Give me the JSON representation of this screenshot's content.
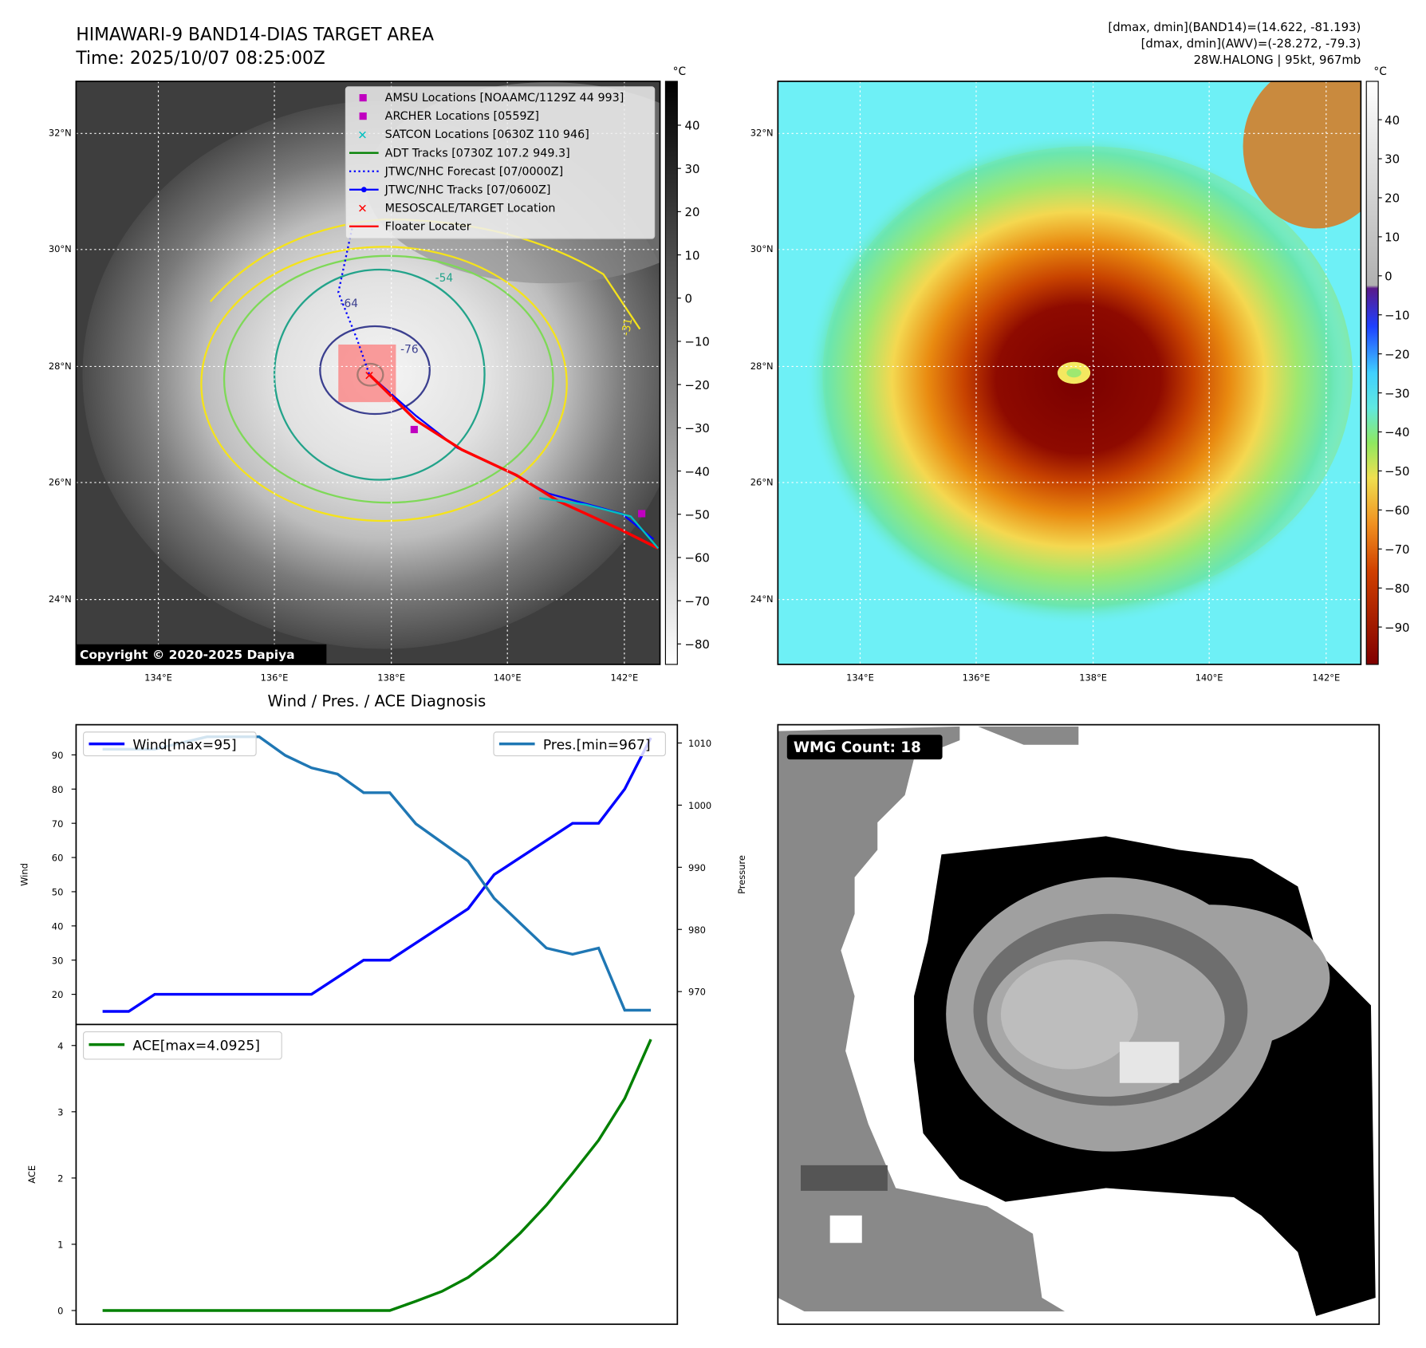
{
  "header": {
    "title": "HIMAWARI-9 BAND14-DIAS TARGET AREA",
    "time": "Time: 2025/10/07 08:25:00Z",
    "info_band14": "[dmax, dmin](BAND14)=(14.622, -81.193)",
    "info_awv": "[dmax, dmin](AWV)=(-28.272, -79.3)",
    "storm": "28W.HALONG | 95kt, 967mb"
  },
  "map": {
    "lat_labels": [
      "32°N",
      "30°N",
      "28°N",
      "26°N",
      "24°N"
    ],
    "lon_labels": [
      "134°E",
      "136°E",
      "138°E",
      "140°E",
      "142°E"
    ],
    "contour_labels": [
      "-64",
      "-76",
      "-54",
      "-31"
    ],
    "copyright": "Copyright © 2020-2025 Dapiya",
    "legend": [
      {
        "label": "AMSU Locations [NOAAMC/1129Z 44 993]",
        "marker": "square",
        "color": "#c000c0"
      },
      {
        "label": "ARCHER Locations [0559Z]",
        "marker": "square",
        "color": "#c000c0"
      },
      {
        "label": "SATCON Locations [0630Z 110 946]",
        "marker": "x",
        "color": "#00c0c0"
      },
      {
        "label": "ADT Tracks [0730Z 107.2 949.3]",
        "marker": "line",
        "color": "#008000"
      },
      {
        "label": "JTWC/NHC Forecast [07/0000Z]",
        "marker": "dotted",
        "color": "#0000ff"
      },
      {
        "label": "JTWC/NHC Tracks [07/0600Z]",
        "marker": "line-dot",
        "color": "#0000ff"
      },
      {
        "label": "MESOSCALE/TARGET Location",
        "marker": "x",
        "color": "#ff0000"
      },
      {
        "label": "Floater Locater",
        "marker": "line",
        "color": "#ff0000"
      }
    ]
  },
  "colorbar_gray": {
    "unit": "°C",
    "ticks": [
      "40",
      "30",
      "20",
      "10",
      "0",
      "−10",
      "−20",
      "−30",
      "−40",
      "−50",
      "−60",
      "−70",
      "−80"
    ]
  },
  "colorbar_color": {
    "unit": "°C",
    "ticks": [
      "40",
      "30",
      "20",
      "10",
      "0",
      "−10",
      "−20",
      "−30",
      "−40",
      "−50",
      "−60",
      "−70",
      "−80",
      "−90"
    ]
  },
  "diagnosis_title": "Wind / Pres. / ACE Diagnosis",
  "wmg": {
    "label": "WMG Count: 18"
  },
  "chart_data": [
    {
      "type": "line",
      "title": "Wind / Pres. / ACE Diagnosis",
      "ylabel": "Wind",
      "y2label": "Pressure",
      "ylim": [
        12,
        98
      ],
      "y2lim": [
        965,
        1012
      ],
      "yticks": [
        20,
        30,
        40,
        50,
        60,
        70,
        80,
        90
      ],
      "y2ticks": [
        970,
        980,
        990,
        1000,
        1010
      ],
      "legend_left": "Wind[max=95]",
      "legend_right": "Pres.[min=967]",
      "series": [
        {
          "name": "Wind",
          "color": "#0000ff",
          "values": [
            15,
            15,
            20,
            20,
            20,
            20,
            20,
            20,
            20,
            25,
            30,
            30,
            35,
            40,
            45,
            55,
            60,
            65,
            70,
            70,
            80,
            95
          ]
        },
        {
          "name": "Pressure",
          "color": "#1f77b4",
          "values": [
            1009,
            1009,
            1009,
            1010,
            1011,
            1011,
            1011,
            1008,
            1006,
            1005,
            1002,
            1002,
            997,
            994,
            991,
            985,
            981,
            977,
            976,
            977,
            967,
            967
          ]
        }
      ]
    },
    {
      "type": "line",
      "ylabel": "ACE",
      "ylim": [
        -0.2,
        4.35
      ],
      "yticks": [
        0,
        1,
        2,
        3,
        4
      ],
      "legend": "ACE[max=4.0925]",
      "series": [
        {
          "name": "ACE",
          "color": "#008000",
          "values": [
            0,
            0,
            0,
            0,
            0,
            0,
            0,
            0,
            0,
            0,
            0,
            0,
            0.14,
            0.29,
            0.5,
            0.8,
            1.17,
            1.59,
            2.07,
            2.57,
            3.2,
            4.0925
          ]
        }
      ]
    }
  ]
}
